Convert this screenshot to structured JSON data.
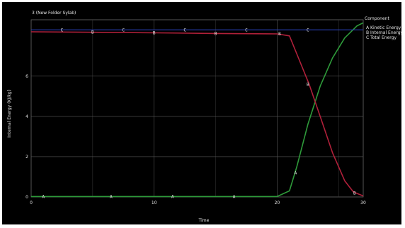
{
  "chart_data": {
    "type": "line",
    "title": "3 (New Folder Sylab)",
    "xlabel": "Time",
    "ylabel": "Internal Energy (KJ/kg)",
    "xlim": [
      0,
      27
    ],
    "ylim": [
      0,
      8.8
    ],
    "x_ticks": [
      0,
      10,
      20,
      30
    ],
    "x_tick_labels": [
      "0",
      "10",
      "20",
      "30"
    ],
    "y_ticks": [
      0,
      2,
      4,
      6
    ],
    "y_tick_labels": [
      "0",
      "2",
      "4",
      "6"
    ],
    "grid": true,
    "legend": {
      "title": "Component",
      "placement": "right",
      "entries": [
        {
          "marker": "A",
          "label": "Kinetic Energy",
          "color": "#2e9a3a"
        },
        {
          "marker": "B",
          "label": "Internal Energy",
          "color": "#b0203a"
        },
        {
          "marker": "C",
          "label": "Total Energy",
          "color": "#2a3fb8"
        }
      ]
    },
    "series": [
      {
        "name": "Kinetic Energy",
        "marker": "A",
        "color": "#2e9a3a",
        "x": [
          0,
          5,
          10,
          15,
          20,
          21,
          21.6,
          22.5,
          23.5,
          24.5,
          25.5,
          26.5,
          27
        ],
        "y": [
          0.02,
          0.02,
          0.02,
          0.02,
          0.02,
          0.3,
          1.5,
          3.6,
          5.5,
          6.9,
          7.9,
          8.5,
          8.65
        ]
      },
      {
        "name": "Internal Energy",
        "marker": "B",
        "color": "#b0203a",
        "x": [
          0,
          5,
          10,
          15,
          20,
          21,
          21.8,
          22.6,
          23.5,
          24.5,
          25.5,
          26.2,
          27
        ],
        "y": [
          8.2,
          8.18,
          8.15,
          8.12,
          8.1,
          8.0,
          6.8,
          5.6,
          4.0,
          2.2,
          0.8,
          0.25,
          0.05
        ]
      },
      {
        "name": "Total Energy",
        "marker": "C",
        "color": "#2a3fb8",
        "x": [
          0,
          5,
          10,
          15,
          20,
          21,
          22,
          24,
          26,
          27
        ],
        "y": [
          8.3,
          8.3,
          8.3,
          8.3,
          8.3,
          8.3,
          8.3,
          8.3,
          8.3,
          8.3
        ]
      }
    ],
    "markers": [
      {
        "series": 2,
        "x": 2.5,
        "y": 8.3
      },
      {
        "series": 1,
        "x": 5,
        "y": 8.18
      },
      {
        "series": 2,
        "x": 7.5,
        "y": 8.3
      },
      {
        "series": 1,
        "x": 10,
        "y": 8.15
      },
      {
        "series": 2,
        "x": 12.5,
        "y": 8.3
      },
      {
        "series": 1,
        "x": 15,
        "y": 8.12
      },
      {
        "series": 2,
        "x": 17.5,
        "y": 8.3
      },
      {
        "series": 1,
        "x": 20.2,
        "y": 8.1
      },
      {
        "series": 2,
        "x": 22.5,
        "y": 8.3
      },
      {
        "series": 0,
        "x": 1,
        "y": 0.02
      },
      {
        "series": 0,
        "x": 6.5,
        "y": 0.02
      },
      {
        "series": 0,
        "x": 11.5,
        "y": 0.02
      },
      {
        "series": 0,
        "x": 16.5,
        "y": 0.02
      },
      {
        "series": 0,
        "x": 21.5,
        "y": 1.2
      },
      {
        "series": 1,
        "x": 22.5,
        "y": 5.6
      },
      {
        "series": 1,
        "x": 26.3,
        "y": 0.2
      }
    ]
  }
}
